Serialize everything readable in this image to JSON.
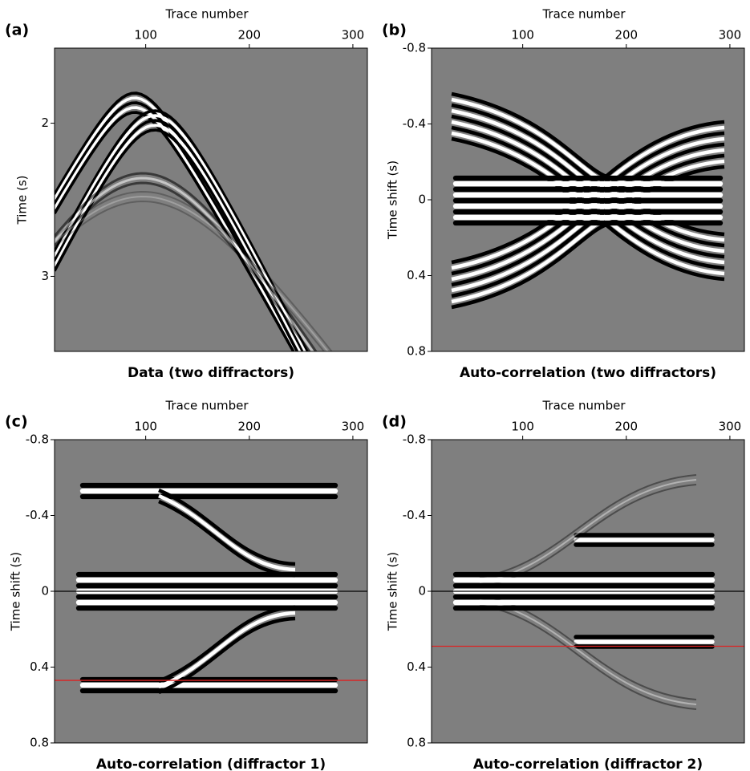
{
  "chart_data": [
    {
      "type": "image",
      "panel_label": "(a)",
      "title": "Data (two diffractors)",
      "xlabel": "Trace number",
      "ylabel": "Time (s)",
      "xlim": [
        12,
        314
      ],
      "xticks": [
        100,
        200,
        300
      ],
      "ylim": [
        3.49,
        1.51
      ],
      "yticks": [
        2,
        3
      ],
      "hlines": []
    },
    {
      "type": "image",
      "panel_label": "(b)",
      "title": "Auto-correlation (two diffractors)",
      "xlabel": "Trace number",
      "ylabel": "Time shift (s)",
      "xlim": [
        12,
        314
      ],
      "xticks": [
        100,
        200,
        300
      ],
      "ylim": [
        0.8,
        -0.8
      ],
      "yticks": [
        -0.8,
        -0.4,
        0,
        0.4,
        0.8
      ],
      "hlines": []
    },
    {
      "type": "image",
      "panel_label": "(c)",
      "title": "Auto-correlation (diffractor 1)",
      "xlabel": "Trace number",
      "ylabel": "Time shift (s)",
      "xlim": [
        12,
        314
      ],
      "xticks": [
        100,
        200,
        300
      ],
      "ylim": [
        0.8,
        -0.8
      ],
      "yticks": [
        -0.8,
        -0.4,
        0,
        0.4,
        0.8
      ],
      "hlines": [
        {
          "value": 0,
          "color": "#000000"
        },
        {
          "value": 0.47,
          "color": "#dd2222"
        }
      ]
    },
    {
      "type": "image",
      "panel_label": "(d)",
      "title": "Auto-correlation (diffractor 2)",
      "xlabel": "Trace number",
      "ylabel": "Time shift (s)",
      "xlim": [
        12,
        314
      ],
      "xticks": [
        100,
        200,
        300
      ],
      "ylim": [
        0.8,
        -0.8
      ],
      "yticks": [
        -0.8,
        -0.4,
        0,
        0.4,
        0.8
      ],
      "hlines": [
        {
          "value": 0,
          "color": "#000000"
        },
        {
          "value": 0.29,
          "color": "#dd2222"
        }
      ]
    }
  ]
}
